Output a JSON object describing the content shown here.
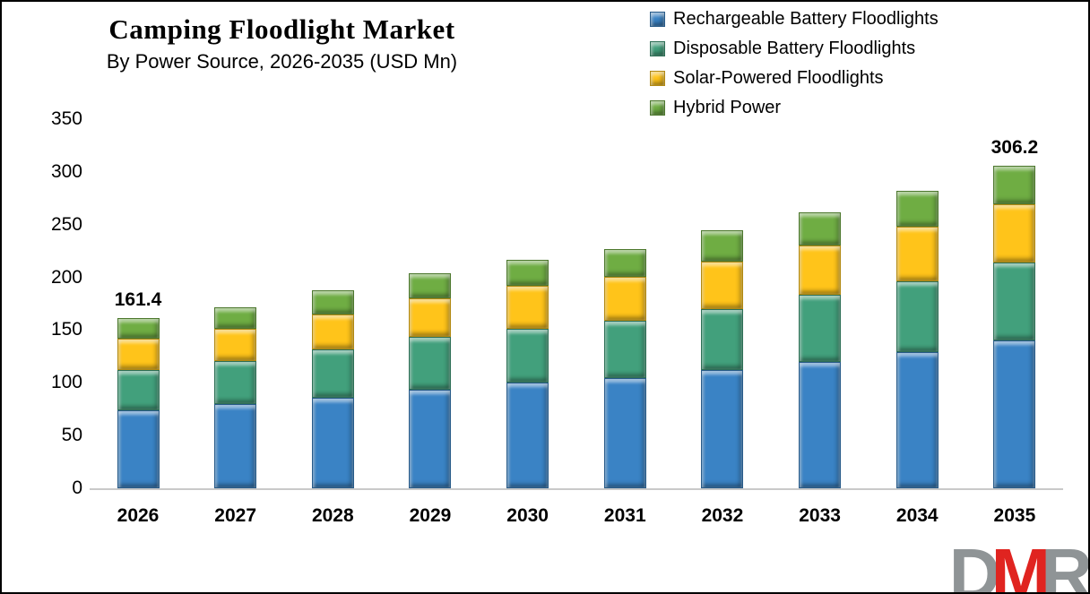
{
  "chart_data": {
    "type": "bar",
    "stacked": true,
    "title": "Camping Floodlight Market",
    "subtitle": "By Power Source, 2026-2035 (USD Mn)",
    "unit": "USD Mn",
    "categories": [
      "2026",
      "2027",
      "2028",
      "2029",
      "2030",
      "2031",
      "2032",
      "2033",
      "2034",
      "2035"
    ],
    "series": [
      {
        "name": "Rechargeable Battery Floodlights",
        "color": "#3A83C5",
        "values": [
          74.0,
          79.9,
          86.2,
          93.8,
          100.5,
          104.5,
          111.8,
          119.5,
          128.9,
          140.3
        ]
      },
      {
        "name": "Disposable Battery Floodlights",
        "color": "#42A07C",
        "values": [
          38.6,
          40.5,
          45.6,
          49.4,
          50.9,
          54.5,
          58.5,
          63.6,
          67.5,
          74.1
        ]
      },
      {
        "name": "Solar-Powered Floodlights",
        "color": "#FFC41A",
        "values": [
          29.4,
          30.7,
          33.3,
          37.0,
          40.8,
          41.4,
          44.9,
          47.5,
          52.1,
          54.9
        ]
      },
      {
        "name": "Hybrid Power",
        "color": "#6FAD43",
        "values": [
          19.4,
          20.5,
          22.3,
          23.4,
          24.8,
          26.5,
          29.7,
          31.4,
          33.4,
          36.9
        ]
      }
    ],
    "total_labels": {
      "2026": "161.4",
      "2035": "306.2"
    },
    "ylim": [
      0,
      350
    ],
    "yticks": [
      0,
      50,
      100,
      150,
      200,
      250,
      300,
      350
    ],
    "grid": false,
    "legend_position": "top-right",
    "axis_line_color": "#C9C9C9"
  },
  "logo": {
    "letters": [
      {
        "char": "D",
        "color": "#8F9496"
      },
      {
        "char": "M",
        "color": "#E02420"
      },
      {
        "char": "R",
        "color": "#8F9496"
      }
    ]
  }
}
